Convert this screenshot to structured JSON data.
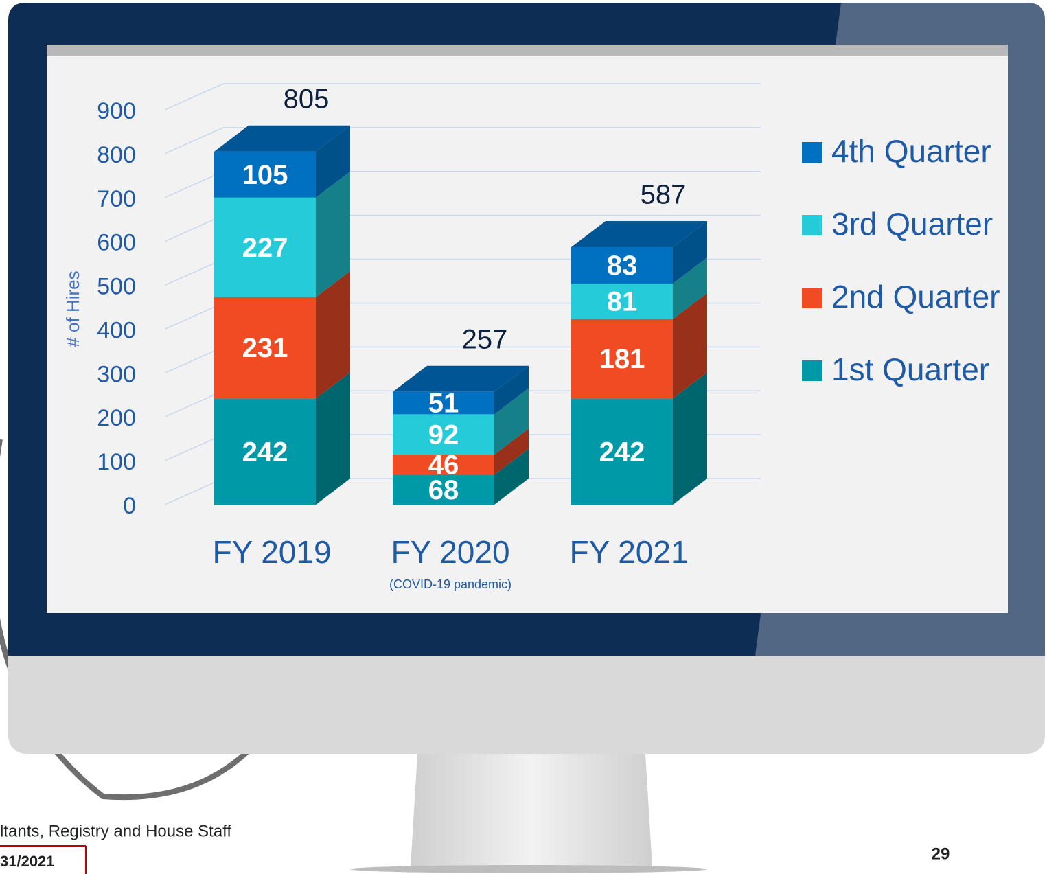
{
  "chart_data": {
    "type": "stacked_bar_3d",
    "y_label": "# of Hires",
    "categories": [
      "FY 2019",
      "FY 2020",
      "FY 2021"
    ],
    "annotations": [
      {
        "text": "(COVID-19 pandemic)",
        "category": 1
      }
    ],
    "series": [
      {
        "name": "1st Quarter",
        "color": "#0099a8",
        "side_color": "#00666e",
        "values": [
          242,
          68,
          242
        ]
      },
      {
        "name": "2nd Quarter",
        "color": "#f04b23",
        "side_color": "#98301a",
        "values": [
          231,
          46,
          181
        ]
      },
      {
        "name": "3rd Quarter",
        "color": "#26cbd9",
        "side_color": "#168088",
        "values": [
          227,
          92,
          81
        ]
      },
      {
        "name": "4th Quarter",
        "color": "#0070c0",
        "side_color": "#00508a",
        "values": [
          105,
          51,
          83
        ]
      }
    ],
    "totals": [
      805,
      257,
      587
    ],
    "top_color": "#005595",
    "ylim": [
      0,
      900
    ],
    "yticks": [
      0,
      100,
      200,
      300,
      400,
      500,
      600,
      700,
      800,
      900
    ],
    "grid": true,
    "legend": "right"
  },
  "footer": {
    "left_text": "ltants, Registry and House Staff",
    "date": "31/2021",
    "page": "29"
  }
}
